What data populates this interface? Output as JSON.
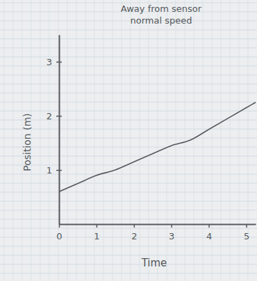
{
  "chart_data": {
    "type": "line",
    "title": "Away from sensor",
    "subtitle": "normal speed",
    "x_label": "Time",
    "y_label": "Position (m)",
    "x": [
      0,
      0.5,
      1,
      1.5,
      2,
      2.5,
      3,
      3.5,
      4,
      4.5,
      5,
      5.25
    ],
    "values": [
      0.6,
      0.75,
      0.9,
      1.0,
      1.15,
      1.3,
      1.45,
      1.55,
      1.75,
      1.95,
      2.15,
      2.25
    ],
    "color": "#55585c",
    "xlim": [
      0,
      5.25
    ],
    "xticks": [
      0,
      1,
      2,
      3,
      4,
      5
    ],
    "ylim": [
      0,
      3.5
    ],
    "yticks": [
      1,
      2,
      3
    ]
  }
}
